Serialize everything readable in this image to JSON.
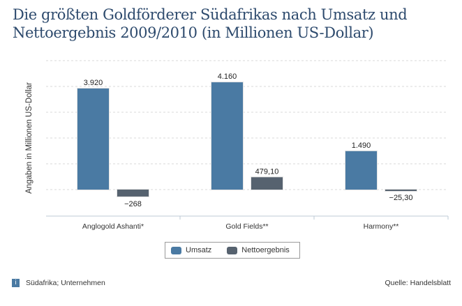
{
  "title": {
    "line1": "Die größten Goldförderer Südafrikas nach Umsatz und",
    "line2": "Nettoergebnis 2009/2010 (in Millionen US-Dollar)"
  },
  "colors": {
    "umsatz": "#4a7aa3",
    "netto": "#56626f",
    "title": "#2d4a6d"
  },
  "chart_data": {
    "type": "bar",
    "title": "Die größten Goldförderer Südafrikas nach Umsatz und Nettoergebnis 2009/2010 (in Millionen US-Dollar)",
    "xlabel": "",
    "ylabel": "Angaben in Millionen US-Dollar",
    "categories": [
      "Anglogold Ashanti*",
      "Gold Fields**",
      "Harmony**"
    ],
    "series": [
      {
        "name": "Umsatz",
        "values": [
          3920,
          4160,
          1490
        ],
        "labels": [
          "3.920",
          "4.160",
          "1.490"
        ]
      },
      {
        "name": "Nettoergebnis",
        "values": [
          -268,
          479.1,
          -25.3
        ],
        "labels": [
          "−268",
          "479,10",
          "−25,30"
        ]
      }
    ],
    "ylim": [
      -1000,
      5000
    ],
    "gridlines": [
      0,
      1000,
      2000,
      3000,
      4000,
      5000
    ],
    "grid": true,
    "legend": "bottom-center"
  },
  "legend": {
    "items": [
      {
        "label": "Umsatz"
      },
      {
        "label": "Nettoergebnis"
      }
    ]
  },
  "footer": {
    "info_icon": "i",
    "note": "Südafrika; Unternehmen",
    "source": "Quelle: Handelsblatt"
  }
}
